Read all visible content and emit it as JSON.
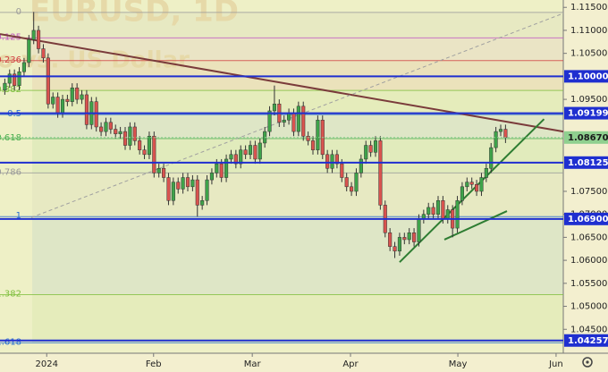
{
  "chart_data": {
    "type": "candlestick",
    "watermark": "EURUSD, 1D",
    "watermark_subtitle": "Euro vs. US Dollar",
    "up_color": "#3ea34a",
    "down_color": "#d9534f",
    "xlim": [
      -1,
      116
    ],
    "ylim": [
      1.0398,
      1.1166
    ],
    "xticks": [
      {
        "value": 8.7,
        "label": "2024"
      },
      {
        "value": 30.9,
        "label": "Feb"
      },
      {
        "value": 51.4,
        "label": "Mar"
      },
      {
        "value": 71.8,
        "label": "Apr"
      },
      {
        "value": 94.1,
        "label": "May"
      },
      {
        "value": 114.5,
        "label": "Jun"
      }
    ],
    "yticks": [
      {
        "value": 1.115,
        "label": "1.11500"
      },
      {
        "value": 1.11,
        "label": "1.11000"
      },
      {
        "value": 1.105,
        "label": "1.10500"
      },
      {
        "value": 1.095,
        "label": "1.09500"
      },
      {
        "value": 1.075,
        "label": "1.07500"
      },
      {
        "value": 1.07,
        "label": "1.07000"
      },
      {
        "value": 1.065,
        "label": "1.06500"
      },
      {
        "value": 1.06,
        "label": "1.06000"
      },
      {
        "value": 1.055,
        "label": "1.05500"
      },
      {
        "value": 1.05,
        "label": "1.05000"
      },
      {
        "value": 1.045,
        "label": "1.04500"
      }
    ],
    "levels": [
      {
        "value": 1.1,
        "label": "1.10000",
        "color": "#1f2fd0"
      },
      {
        "value": 1.09199,
        "label": "1.09199",
        "color": "#1f2fd0"
      },
      {
        "value": 1.08125,
        "label": "1.08125",
        "color": "#1f2fd0"
      },
      {
        "value": 1.069,
        "label": "1.06900",
        "color": "#1f2fd0"
      },
      {
        "value": 1.04257,
        "label": "1.04257",
        "color": "#1f2fd0"
      }
    ],
    "last_price": {
      "value": 1.0867,
      "label": "1.08670",
      "color": "#8fd08f"
    },
    "fib": {
      "high": 1.1139,
      "low": 1.0695,
      "levels": [
        0,
        0.125,
        0.236,
        0.382,
        0.5,
        0.618,
        0.786,
        1,
        1.382,
        1.618
      ],
      "colors": [
        "#9a9a9a",
        "#c05bc0",
        "#d04040",
        "#7fbf3f",
        "#2a6fd0",
        "#4caf50",
        "#9a9a9a",
        "#2a6fd0",
        "#7fbf3f",
        "#2a6fd0"
      ]
    },
    "trendlines": [
      {
        "color": "#7a3b3b",
        "x": [
          -1,
          116
        ],
        "y": [
          1.1092,
          1.088
        ],
        "dash": false
      },
      {
        "color": "#a0a0a0",
        "x": [
          5.5,
          116
        ],
        "y": [
          1.0693,
          1.1137
        ],
        "dash": true
      },
      {
        "color": "#2e7d32",
        "x": [
          82,
          112
        ],
        "y": [
          1.0596,
          1.0907
        ],
        "dash": false
      },
      {
        "color": "#2e7d32",
        "x": [
          91.3,
          104.3
        ],
        "y": [
          1.0645,
          1.0707
        ],
        "dash": false
      }
    ],
    "x": [
      0,
      1,
      2,
      3,
      4,
      5,
      6,
      7,
      8,
      9,
      10,
      11,
      12,
      13,
      14,
      15,
      16,
      17,
      18,
      19,
      20,
      21,
      22,
      23,
      24,
      25,
      26,
      27,
      28,
      29,
      30,
      31,
      32,
      33,
      34,
      35,
      36,
      37,
      38,
      39,
      40,
      41,
      42,
      43,
      44,
      45,
      46,
      47,
      48,
      49,
      50,
      51,
      52,
      53,
      54,
      55,
      56,
      57,
      58,
      59,
      60,
      61,
      62,
      63,
      64,
      65,
      66,
      67,
      68,
      69,
      70,
      71,
      72,
      73,
      74,
      75,
      76,
      77,
      78,
      79,
      80,
      81,
      82,
      83,
      84,
      85,
      86,
      87,
      88,
      89,
      90,
      91,
      92,
      93,
      94,
      95,
      96,
      97,
      98,
      99,
      100,
      101,
      102,
      103,
      104
    ],
    "open": [
      1.097,
      1.0985,
      1.1005,
      1.098,
      1.101,
      1.103,
      1.108,
      1.11,
      1.106,
      1.104,
      1.094,
      1.0955,
      1.092,
      1.095,
      1.0945,
      1.0975,
      1.095,
      1.096,
      1.0895,
      1.0945,
      1.089,
      1.088,
      1.09,
      1.0885,
      1.0875,
      1.088,
      1.085,
      1.089,
      1.086,
      1.084,
      1.083,
      1.087,
      1.079,
      1.08,
      1.078,
      1.073,
      1.077,
      1.0755,
      1.078,
      1.076,
      1.0775,
      1.072,
      1.073,
      1.0775,
      1.079,
      1.081,
      1.078,
      1.082,
      1.083,
      1.081,
      1.084,
      1.083,
      1.085,
      1.082,
      1.0855,
      1.088,
      1.0925,
      1.094,
      1.09,
      1.0905,
      1.092,
      1.088,
      1.0935,
      1.087,
      1.086,
      1.084,
      1.0905,
      1.083,
      1.08,
      1.083,
      1.081,
      1.078,
      1.076,
      1.075,
      1.079,
      1.082,
      1.085,
      1.0835,
      1.086,
      1.072,
      1.066,
      1.063,
      1.062,
      1.065,
      1.0645,
      1.066,
      1.064,
      1.069,
      1.07,
      1.0715,
      1.07,
      1.073,
      1.069,
      1.071,
      1.067,
      1.073,
      1.076,
      1.077,
      1.0765,
      1.075,
      1.078,
      1.08,
      1.0845,
      1.088,
      1.0885
    ],
    "high": [
      1.0995,
      1.1015,
      1.1015,
      1.102,
      1.104,
      1.109,
      1.114,
      1.111,
      1.107,
      1.105,
      1.0965,
      1.0965,
      1.096,
      1.096,
      1.0985,
      1.0985,
      1.097,
      1.097,
      1.0955,
      1.0955,
      1.09,
      1.091,
      1.091,
      1.0895,
      1.089,
      1.089,
      1.09,
      1.09,
      1.087,
      1.085,
      1.088,
      1.088,
      1.081,
      1.081,
      1.079,
      1.078,
      1.078,
      1.079,
      1.079,
      1.0785,
      1.0785,
      1.074,
      1.0785,
      1.08,
      1.082,
      1.082,
      1.083,
      1.084,
      1.084,
      1.085,
      1.085,
      1.086,
      1.086,
      1.0865,
      1.089,
      1.0935,
      1.098,
      1.095,
      1.0915,
      1.093,
      1.093,
      1.0945,
      1.0945,
      1.088,
      1.087,
      1.0915,
      1.0915,
      1.084,
      1.084,
      1.084,
      1.082,
      1.079,
      1.077,
      1.08,
      1.083,
      1.086,
      1.086,
      1.087,
      1.087,
      1.073,
      1.067,
      1.064,
      1.066,
      1.066,
      1.067,
      1.067,
      1.07,
      1.071,
      1.0725,
      1.0725,
      1.074,
      1.074,
      1.072,
      1.072,
      1.074,
      1.077,
      1.078,
      1.078,
      1.0775,
      1.079,
      1.081,
      1.0855,
      1.089,
      1.0895,
      1.0895
    ],
    "low": [
      1.096,
      1.0975,
      1.097,
      1.097,
      1.1,
      1.102,
      1.107,
      1.105,
      1.103,
      1.093,
      1.093,
      1.091,
      1.091,
      1.0935,
      1.0935,
      1.094,
      1.094,
      1.0885,
      1.0885,
      1.088,
      1.087,
      1.087,
      1.0875,
      1.0865,
      1.0865,
      1.084,
      1.084,
      1.085,
      1.083,
      1.082,
      1.082,
      1.078,
      1.078,
      1.077,
      1.072,
      1.072,
      1.0745,
      1.0745,
      1.075,
      1.075,
      1.0695,
      1.071,
      1.072,
      1.0765,
      1.078,
      1.077,
      1.077,
      1.081,
      1.08,
      1.08,
      1.082,
      1.082,
      1.081,
      1.081,
      1.0845,
      1.087,
      1.0915,
      1.089,
      1.089,
      1.0895,
      1.087,
      1.087,
      1.086,
      1.085,
      1.083,
      1.083,
      1.082,
      1.079,
      1.079,
      1.08,
      1.077,
      1.075,
      1.074,
      1.074,
      1.078,
      1.081,
      1.0825,
      1.0825,
      1.071,
      1.065,
      1.062,
      1.0605,
      1.061,
      1.0635,
      1.0635,
      1.063,
      1.063,
      1.068,
      1.069,
      1.069,
      1.069,
      1.068,
      1.068,
      1.065,
      1.066,
      1.072,
      1.075,
      1.0755,
      1.074,
      1.074,
      1.077,
      1.079,
      1.0835,
      1.087,
      1.0855
    ],
    "close": [
      1.0985,
      1.1005,
      1.098,
      1.101,
      1.103,
      1.108,
      1.11,
      1.106,
      1.104,
      1.094,
      1.0955,
      1.092,
      1.095,
      1.0945,
      1.0975,
      1.095,
      1.096,
      1.0895,
      1.0945,
      1.089,
      1.088,
      1.09,
      1.0885,
      1.0875,
      1.088,
      1.085,
      1.089,
      1.086,
      1.084,
      1.083,
      1.087,
      1.079,
      1.08,
      1.078,
      1.073,
      1.077,
      1.0755,
      1.078,
      1.076,
      1.0775,
      1.072,
      1.073,
      1.0775,
      1.079,
      1.081,
      1.078,
      1.082,
      1.083,
      1.081,
      1.084,
      1.083,
      1.085,
      1.082,
      1.0855,
      1.088,
      1.0925,
      1.094,
      1.09,
      1.0905,
      1.092,
      1.088,
      1.0935,
      1.087,
      1.086,
      1.084,
      1.0905,
      1.083,
      1.08,
      1.083,
      1.081,
      1.078,
      1.076,
      1.075,
      1.079,
      1.082,
      1.085,
      1.0835,
      1.086,
      1.072,
      1.066,
      1.063,
      1.062,
      1.065,
      1.0645,
      1.066,
      1.064,
      1.069,
      1.07,
      1.0715,
      1.07,
      1.073,
      1.069,
      1.071,
      1.067,
      1.073,
      1.076,
      1.077,
      1.0765,
      1.075,
      1.078,
      1.08,
      1.0845,
      1.088,
      1.0885,
      1.0867
    ]
  }
}
